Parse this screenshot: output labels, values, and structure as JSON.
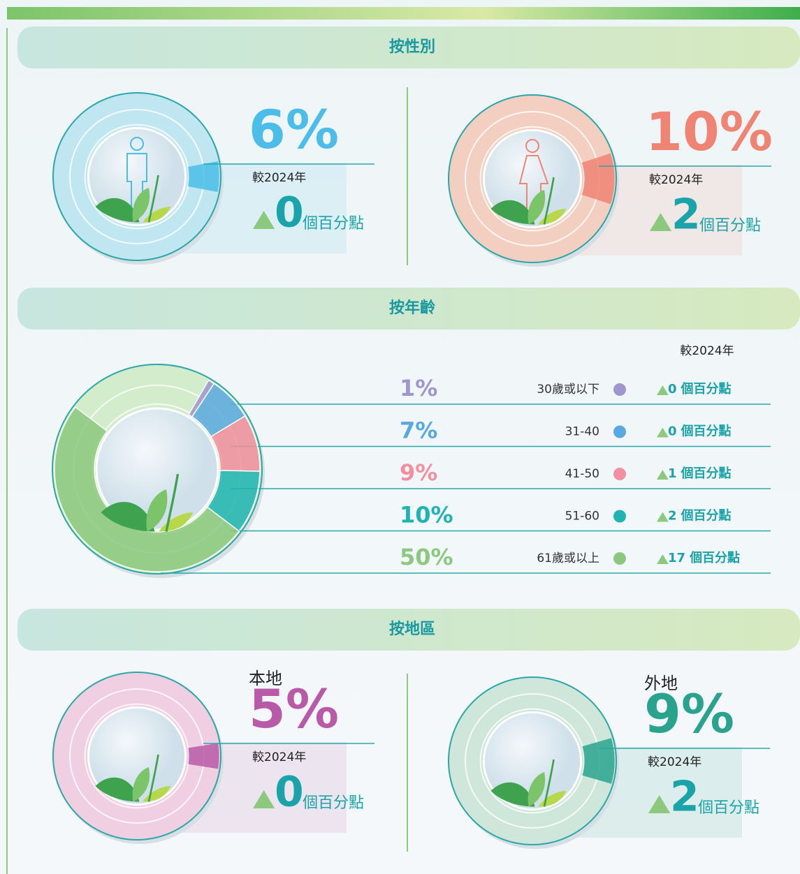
{
  "sections": [
    {
      "title": "按性別",
      "items": [
        {
          "value": 6,
          "label": "6%",
          "color": "#4bbde8",
          "compare": "較2024年",
          "change": 0,
          "change_unit": "個百分點"
        },
        {
          "value": 10,
          "label": "10%",
          "color": "#ef8474",
          "compare": "較2024年",
          "change": 2,
          "change_unit": "個百分點"
        }
      ]
    },
    {
      "title": "按年齡",
      "compare": "較2024年",
      "items": [
        {
          "value": 1,
          "label": "1%",
          "group": "30歲或以下",
          "color": "#9f95cf",
          "change": 0,
          "change_unit": "個百分點"
        },
        {
          "value": 7,
          "label": "7%",
          "group": "31-40",
          "color": "#5aa8e0",
          "change": 0,
          "change_unit": "個百分點"
        },
        {
          "value": 9,
          "label": "9%",
          "group": "41-50",
          "color": "#f28fa0",
          "change": 1,
          "change_unit": "個百分點"
        },
        {
          "value": 10,
          "label": "10%",
          "group": "51-60",
          "color": "#1fb3b3",
          "change": 2,
          "change_unit": "個百分點"
        },
        {
          "value": 50,
          "label": "50%",
          "group": "61歲或以上",
          "color": "#8cc97e",
          "change": 17,
          "change_unit": "個百分點"
        }
      ]
    },
    {
      "title": "按地區",
      "items": [
        {
          "name": "本地",
          "value": 5,
          "label": "5%",
          "color": "#b85aa8",
          "compare": "較2024年",
          "change": 0,
          "change_unit": "個百分點"
        },
        {
          "name": "外地",
          "value": 9,
          "label": "9%",
          "color": "#2aa38e",
          "compare": "較2024年",
          "change": 2,
          "change_unit": "個百分點"
        }
      ]
    }
  ]
}
